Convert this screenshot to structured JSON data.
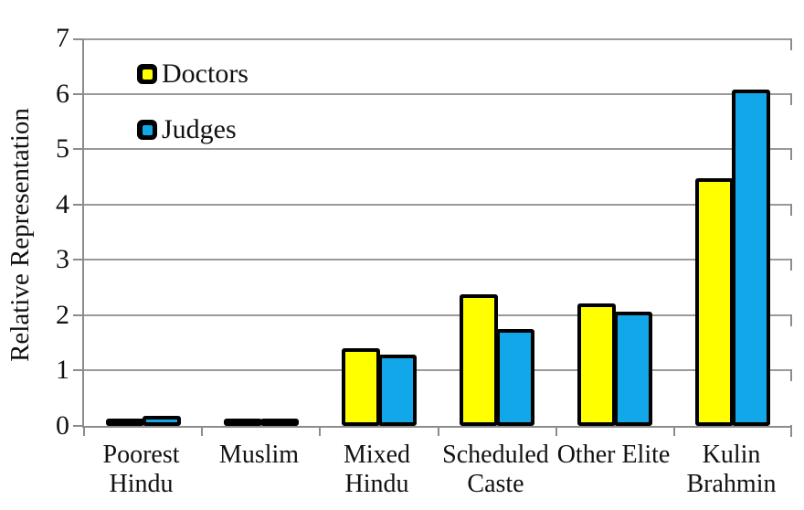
{
  "chart_data": {
    "type": "bar",
    "title": "",
    "xlabel": "",
    "ylabel": "Relative Representation",
    "ylim": [
      0,
      7
    ],
    "yticks": [
      0,
      1,
      2,
      3,
      4,
      5,
      6,
      7
    ],
    "grid": true,
    "legend_position": "top-left-inside",
    "categories": [
      "Poorest\nHindu",
      "Muslim",
      "Mixed\nHindu",
      "Scheduled\nCaste",
      "Other Elite",
      "Kulin\nBrahmin"
    ],
    "series": [
      {
        "name": "Doctors",
        "color": "#FFFF00",
        "values": [
          0.08,
          0.12,
          1.41,
          2.38,
          2.21,
          4.47
        ]
      },
      {
        "name": "Judges",
        "color": "#12A7E8",
        "values": [
          0.18,
          0.14,
          1.28,
          1.75,
          2.07,
          6.07
        ]
      }
    ],
    "bar_outline_color": "#000000",
    "axis_color": "#8C8C8C",
    "gridline_color": "#9A9A9A",
    "background_color": "#FFFFFF"
  }
}
